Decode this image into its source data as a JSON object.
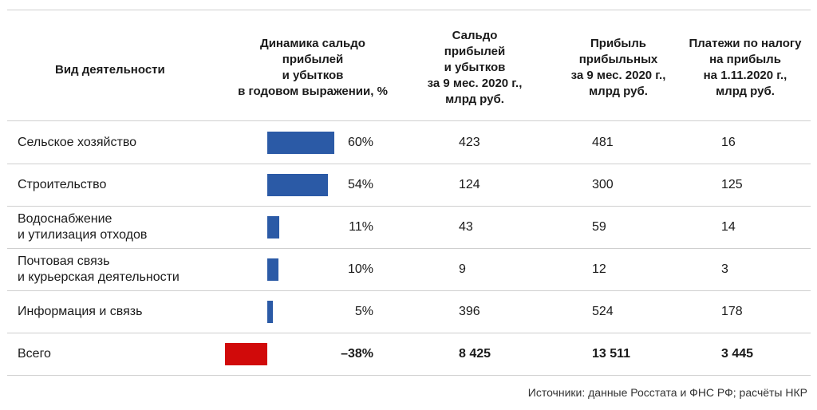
{
  "header": {
    "col_activity": "Вид деятельности",
    "col_dynamics": [
      "Динамика сальдо",
      "прибылей",
      "и убытков",
      "в годовом выражении, %"
    ],
    "col_saldo": [
      "Сальдо",
      "прибылей",
      "и убытков",
      "за 9 мес. 2020 г.,",
      "млрд руб."
    ],
    "col_profit": [
      "Прибыль",
      "прибыльных",
      "за 9 мес. 2020 г.,",
      "млрд руб."
    ],
    "col_tax": [
      "Платежи по налогу",
      "на прибыль",
      "на 1.11.2020 г.,",
      "млрд руб."
    ]
  },
  "colors": {
    "positive": "#2b5aa6",
    "negative": "#d10a0a"
  },
  "chart_data": {
    "type": "table",
    "rows": [
      {
        "label": [
          "Сельское хозяйство"
        ],
        "dynamics": 60,
        "dynamics_label": "60%",
        "saldo": "423",
        "profit": "481",
        "tax": "16",
        "bold": false
      },
      {
        "label": [
          "Строительство"
        ],
        "dynamics": 54,
        "dynamics_label": "54%",
        "saldo": "124",
        "profit": "300",
        "tax": "125",
        "bold": false
      },
      {
        "label": [
          "Водоснабжение",
          "и утилизация отходов"
        ],
        "dynamics": 11,
        "dynamics_label": "11%",
        "saldo": "43",
        "profit": "59",
        "tax": "14",
        "bold": false
      },
      {
        "label": [
          "Почтовая связь",
          "и курьерская деятельности"
        ],
        "dynamics": 10,
        "dynamics_label": "10%",
        "saldo": "9",
        "profit": "12",
        "tax": "3",
        "bold": false
      },
      {
        "label": [
          "Информация и связь"
        ],
        "dynamics": 5,
        "dynamics_label": "5%",
        "saldo": "396",
        "profit": "524",
        "tax": "178",
        "bold": false
      },
      {
        "label": [
          "Всего"
        ],
        "dynamics": -38,
        "dynamics_label": "–38%",
        "saldo": "8 425",
        "profit": "13 511",
        "tax": "3 445",
        "bold": true
      }
    ]
  },
  "source": "Источники: данные Росстата и ФНС РФ; расчёты НКР"
}
